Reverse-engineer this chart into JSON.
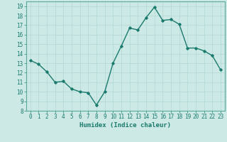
{
  "x": [
    0,
    1,
    2,
    3,
    4,
    5,
    6,
    7,
    8,
    9,
    10,
    11,
    12,
    13,
    14,
    15,
    16,
    17,
    18,
    19,
    20,
    21,
    22,
    23
  ],
  "y": [
    13.3,
    12.9,
    12.1,
    11.0,
    11.1,
    10.3,
    10.0,
    9.9,
    8.6,
    10.0,
    13.0,
    14.8,
    16.7,
    16.5,
    17.8,
    18.9,
    17.5,
    17.6,
    17.1,
    14.6,
    14.6,
    14.3,
    13.8,
    12.3
  ],
  "line_color": "#1a7a6e",
  "marker": "D",
  "marker_size": 1.8,
  "line_width": 1.0,
  "bg_color": "#cce9e5",
  "grid_color": "#b0d8d4",
  "xlabel": "Humidex (Indice chaleur)",
  "ylim": [
    8,
    19.5
  ],
  "xlim": [
    -0.5,
    23.5
  ],
  "yticks": [
    8,
    9,
    10,
    11,
    12,
    13,
    14,
    15,
    16,
    17,
    18,
    19
  ],
  "xticks": [
    0,
    1,
    2,
    3,
    4,
    5,
    6,
    7,
    8,
    9,
    10,
    11,
    12,
    13,
    14,
    15,
    16,
    17,
    18,
    19,
    20,
    21,
    22,
    23
  ],
  "xlabel_fontsize": 6.5,
  "tick_fontsize": 5.5,
  "tick_color": "#1a7a6e",
  "axis_color": "#1a7a6e",
  "spine_color": "#5aaa9a"
}
